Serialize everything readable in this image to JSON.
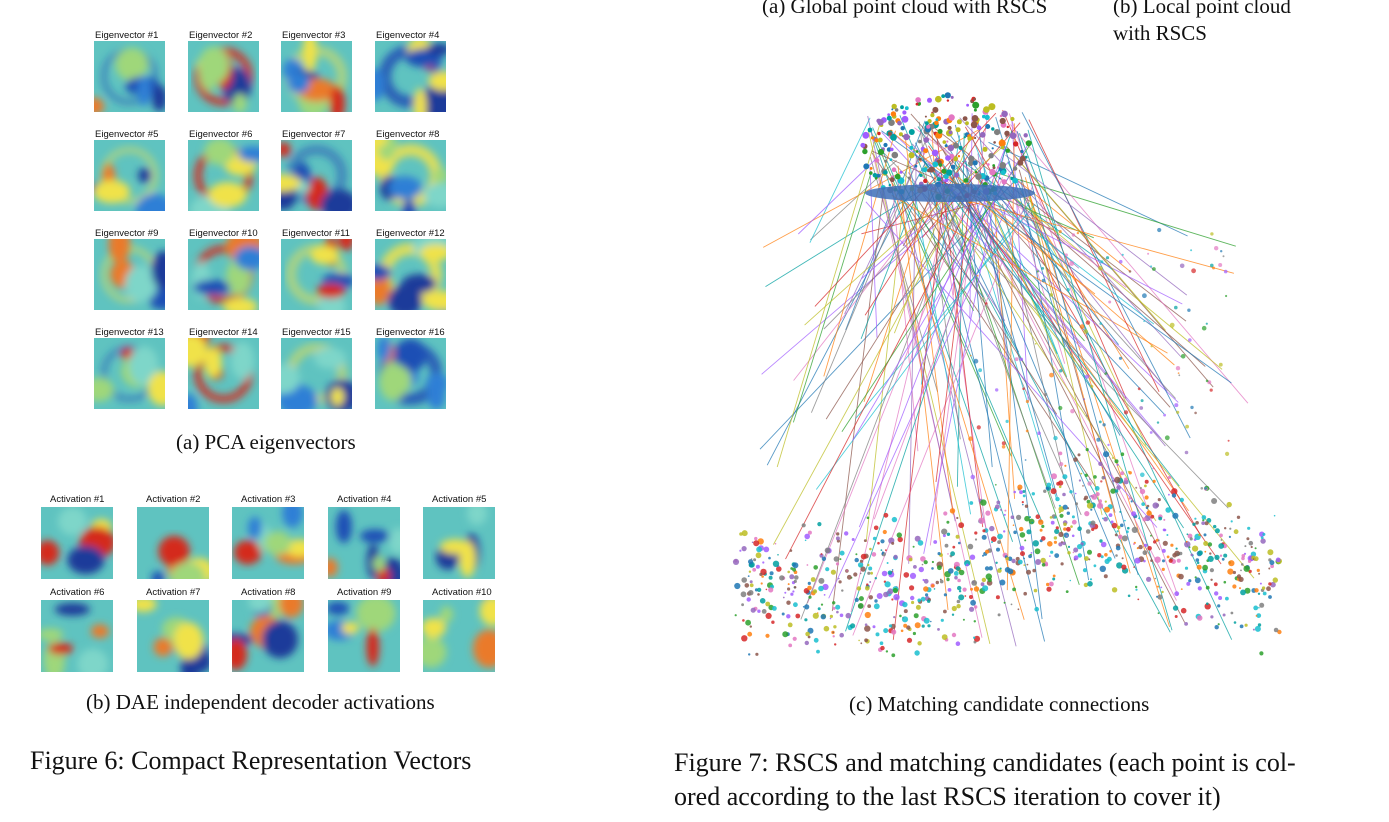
{
  "fig6": {
    "pca_titles": [
      "Eigenvector #1",
      "Eigenvector #2",
      "Eigenvector #3",
      "Eigenvector #4",
      "Eigenvector #5",
      "Eigenvector #6",
      "Eigenvector #7",
      "Eigenvector #8",
      "Eigenvector #9",
      "Eigenvector #10",
      "Eigenvector #11",
      "Eigenvector #12",
      "Eigenvector #13",
      "Eigenvector #14",
      "Eigenvector #15",
      "Eigenvector #16"
    ],
    "pca_caption": "(a) PCA eigenvectors",
    "dae_titles": [
      "Activation #1",
      "Activation #2",
      "Activation #3",
      "Activation #4",
      "Activation #5",
      "Activation #6",
      "Activation #7",
      "Activation #8",
      "Activation #9",
      "Activation #10"
    ],
    "dae_caption": "(b) DAE independent decoder activations",
    "figure_caption": "Figure 6: Compact Representation Vectors"
  },
  "fig7": {
    "sub_a": "(a) Global point cloud with RSCS",
    "sub_b_line1": "(b) Local point cloud",
    "sub_b_line2": "with RSCS",
    "sub_c": "(c) Matching candidate connections",
    "figure_caption_line1": "Figure 7: RSCS and matching candidates (each point is col-",
    "figure_caption_line2": "ored according to the last RSCS iteration to cover it)"
  }
}
